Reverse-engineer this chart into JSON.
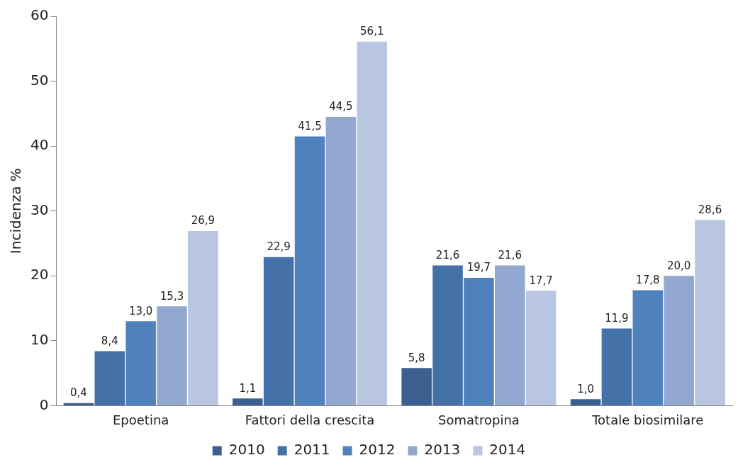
{
  "chart_data": {
    "type": "bar",
    "ylabel": "Incidenza %",
    "categories": [
      "Epoetina",
      "Fattori della crescita",
      "Somatropina",
      "Totale biosimilare"
    ],
    "series": [
      {
        "name": "2010",
        "color": "#3b5f8e",
        "values": [
          0.4,
          1.1,
          5.8,
          1.0
        ],
        "value_labels": [
          "0,4",
          "1,1",
          "5,8",
          "1,0"
        ]
      },
      {
        "name": "2011",
        "color": "#4471a7",
        "values": [
          8.4,
          22.9,
          21.6,
          11.9
        ],
        "value_labels": [
          "8,4",
          "22,9",
          "21,6",
          "11,9"
        ]
      },
      {
        "name": "2012",
        "color": "#4f81bd",
        "values": [
          13.0,
          41.5,
          19.7,
          17.8
        ],
        "value_labels": [
          "13,0",
          "41,5",
          "19,7",
          "17,8"
        ]
      },
      {
        "name": "2013",
        "color": "#93a8d0",
        "values": [
          15.3,
          44.5,
          21.6,
          20.0
        ],
        "value_labels": [
          "15,3",
          "44,5",
          "21,6",
          "20,0"
        ]
      },
      {
        "name": "2014",
        "color": "#b9c6e1",
        "values": [
          26.9,
          56.1,
          17.7,
          28.6
        ],
        "value_labels": [
          "26,9",
          "56,1",
          "17,7",
          "28,6"
        ]
      }
    ],
    "ylim": [
      0,
      60
    ],
    "yticks": [
      0,
      10,
      20,
      30,
      40,
      50,
      60
    ],
    "grid": false,
    "legend": "bottom"
  }
}
